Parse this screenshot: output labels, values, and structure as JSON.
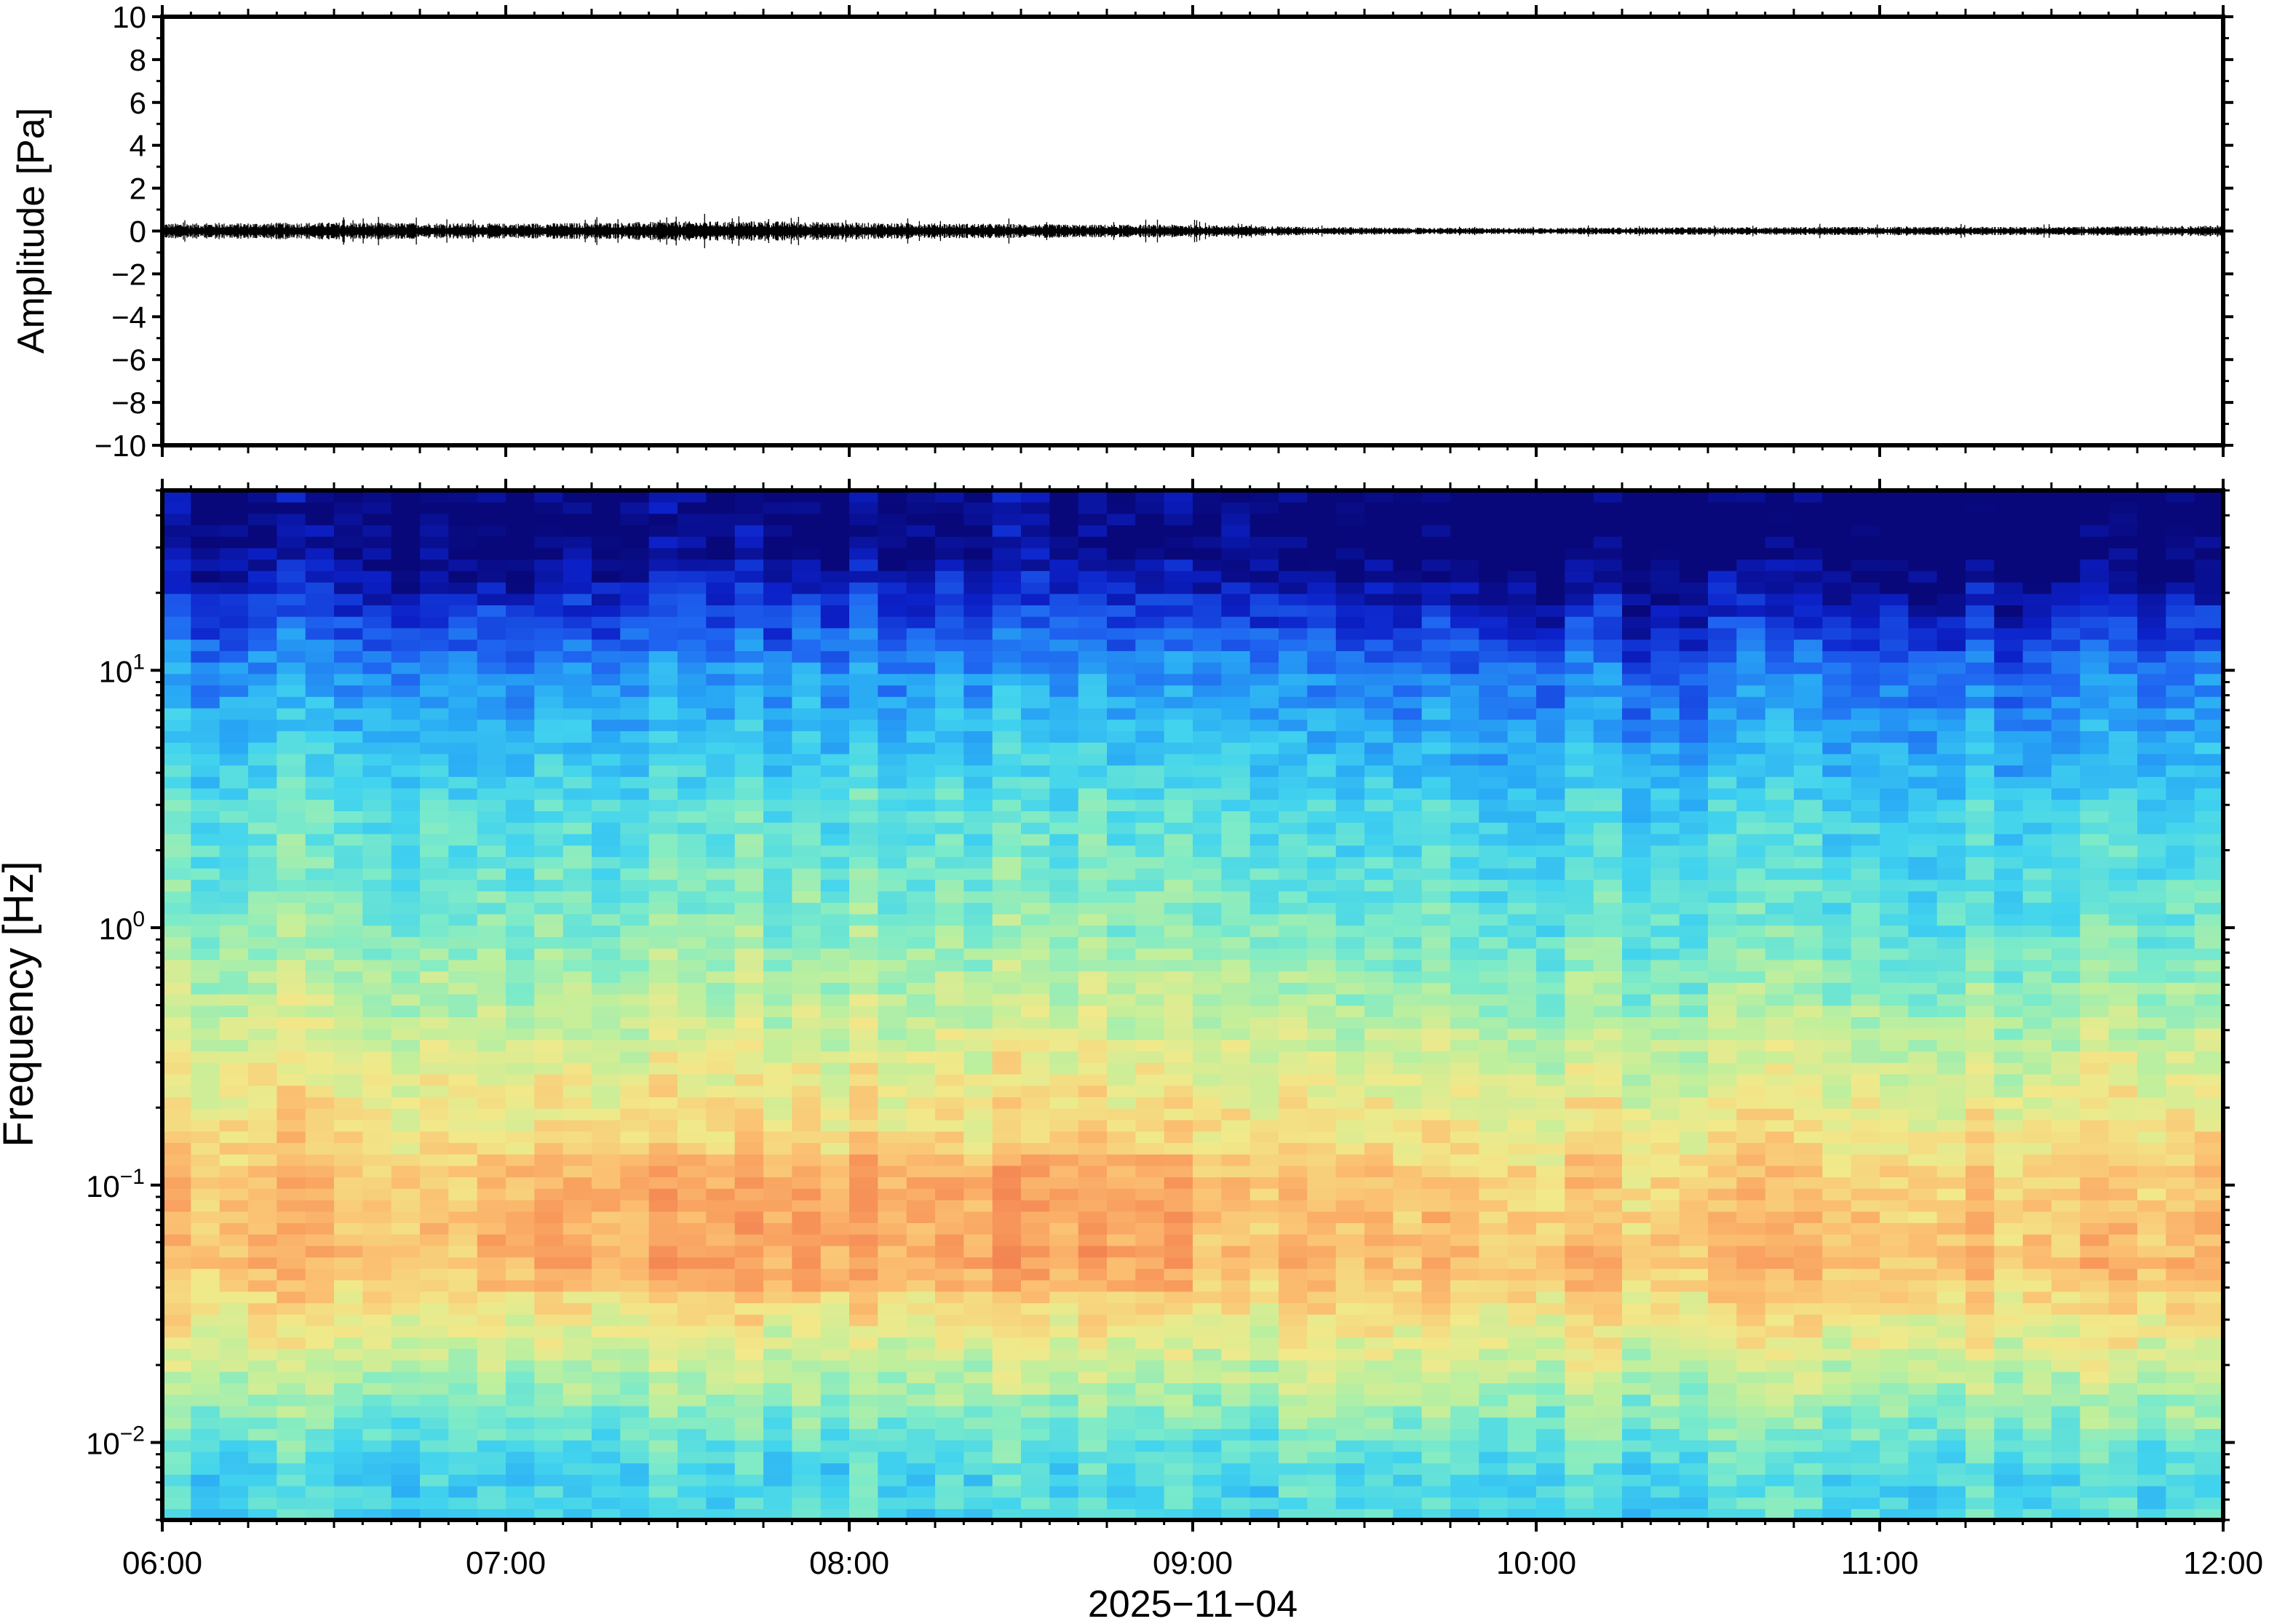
{
  "chart_data": [
    {
      "type": "line",
      "panel": "waveform",
      "ylabel": "Amplitude [Pa]",
      "ylim": [
        -10,
        10
      ],
      "yticks": [
        {
          "value": 10,
          "label": "10"
        },
        {
          "value": 8,
          "label": "8"
        },
        {
          "value": 6,
          "label": "6"
        },
        {
          "value": 4,
          "label": "4"
        },
        {
          "value": 2,
          "label": "2"
        },
        {
          "value": 0,
          "label": "0"
        },
        {
          "value": -2,
          "label": "−2"
        },
        {
          "value": -4,
          "label": "−4"
        },
        {
          "value": -6,
          "label": "−6"
        },
        {
          "value": -8,
          "label": "−8"
        },
        {
          "value": -10,
          "label": "−10"
        }
      ],
      "trace_color": "#000000",
      "envelope": {
        "x": [
          "06:00",
          "06:30",
          "07:00",
          "07:20",
          "07:30",
          "07:50",
          "08:00",
          "08:20",
          "08:40",
          "09:00",
          "09:20",
          "09:40",
          "10:00",
          "10:30",
          "11:00",
          "11:30",
          "12:00"
        ],
        "amplitude": [
          0.35,
          0.4,
          0.35,
          0.4,
          0.45,
          0.45,
          0.4,
          0.35,
          0.3,
          0.3,
          0.2,
          0.15,
          0.15,
          0.18,
          0.2,
          0.2,
          0.25
        ]
      },
      "grid": false
    },
    {
      "type": "heatmap",
      "panel": "spectrogram",
      "ylabel": "Frequency [Hz]",
      "xlabel": "2025−11−04",
      "xticks": [
        "06:00",
        "07:00",
        "08:00",
        "09:00",
        "10:00",
        "11:00",
        "12:00"
      ],
      "xlim": [
        "06:00",
        "12:00"
      ],
      "y_scale": "log",
      "ylim": [
        0.005,
        50
      ],
      "yticks": [
        {
          "value": 10,
          "mantissa": "10",
          "exp": "1"
        },
        {
          "value": 1,
          "mantissa": "10",
          "exp": "0"
        },
        {
          "value": 0.1,
          "mantissa": "10",
          "exp": "−1"
        },
        {
          "value": 0.01,
          "mantissa": "10",
          "exp": "−2"
        }
      ],
      "colormap": [
        "#08087a",
        "#0c21c9",
        "#1f64f0",
        "#28a8f5",
        "#42d4ee",
        "#7debc8",
        "#c0ef9c",
        "#f1e98a",
        "#fbc072",
        "#f89a5c",
        "#f07a4e"
      ],
      "time_bins": 72,
      "freq_bins": 90,
      "description_rows": [
        {
          "freq_hz": 30,
          "level": 0.02
        },
        {
          "freq_hz": 20,
          "level": 0.12
        },
        {
          "freq_hz": 10,
          "level": 0.28
        },
        {
          "freq_hz": 3,
          "level": 0.45
        },
        {
          "freq_hz": 1,
          "level": 0.53
        },
        {
          "freq_hz": 0.3,
          "level": 0.68
        },
        {
          "freq_hz": 0.1,
          "level": 0.8
        },
        {
          "freq_hz": 0.05,
          "level": 0.82
        },
        {
          "freq_hz": 0.02,
          "level": 0.62
        },
        {
          "freq_hz": 0.008,
          "level": 0.42
        }
      ],
      "grid": false
    }
  ]
}
